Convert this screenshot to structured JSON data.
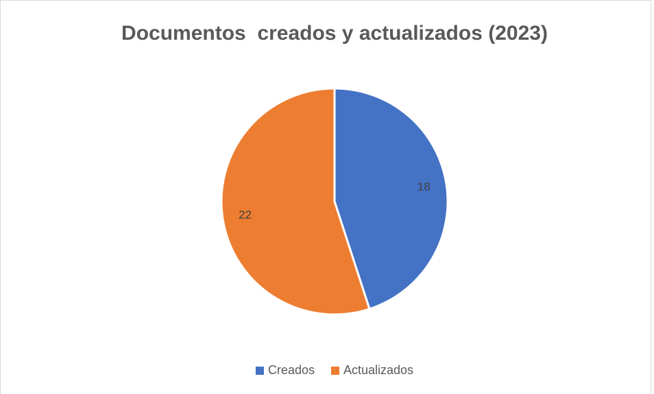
{
  "chart_data": {
    "type": "pie",
    "title": "Documentos  creados y actualizados (2023)",
    "categories": [
      "Creados",
      "Actualizados"
    ],
    "values": [
      18,
      22
    ],
    "colors": [
      "#4472c4",
      "#ed7d31"
    ],
    "legend": "bottom"
  }
}
